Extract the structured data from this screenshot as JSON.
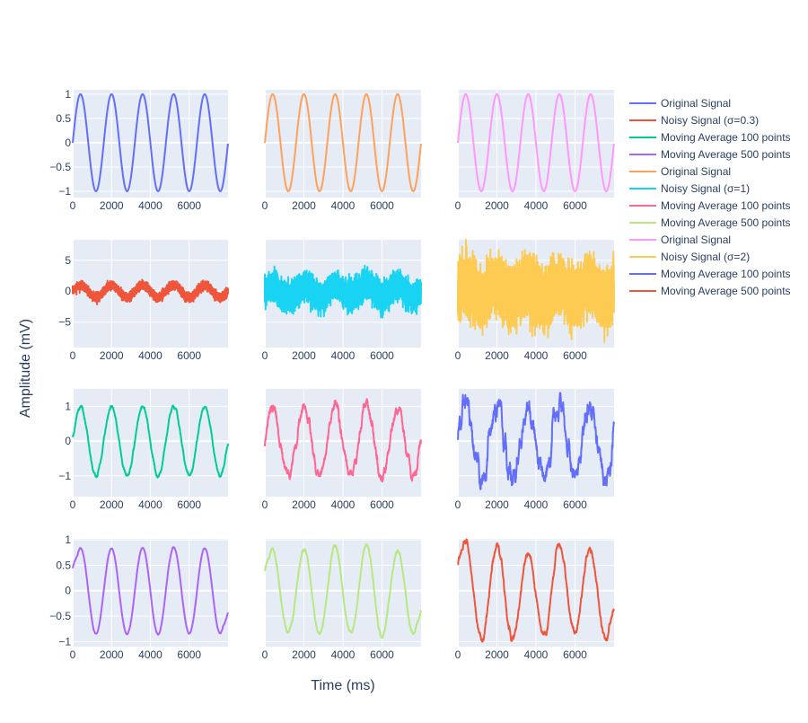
{
  "chart_data": {
    "type": "line",
    "layout": "4x3 subplot grid, shared y-axis per row",
    "xlabel": "Time (ms)",
    "ylabel": "Amplitude (mV)",
    "grid": true,
    "legend_placement": "right",
    "plot_background": "#E5ECF6",
    "x_range": [
      0,
      8000
    ],
    "x_ticks": [
      0,
      2000,
      4000,
      6000
    ],
    "signal": {
      "amplitude": 1,
      "period_ms": 1600,
      "sample_spacing_ms": 1
    },
    "rows": [
      {
        "ylim": [
          -1.13,
          1.09
        ],
        "yticks": [
          -1,
          -0.5,
          0,
          0.5,
          1
        ],
        "ytick_labels": [
          "−1",
          "−0.5",
          "0",
          "0.5",
          "1"
        ]
      },
      {
        "ylim": [
          -9.1,
          8.3
        ],
        "yticks": [
          -5,
          0,
          5
        ],
        "ytick_labels": [
          "−5",
          "0",
          "5"
        ]
      },
      {
        "ylim": [
          -1.6,
          1.5
        ],
        "yticks": [
          -1,
          0,
          1
        ],
        "ytick_labels": [
          "−1",
          "0",
          "1"
        ]
      },
      {
        "ylim": [
          -1.1,
          1.02
        ],
        "yticks": [
          -1,
          -0.5,
          0,
          0.5,
          1
        ],
        "ytick_labels": [
          "−1",
          "−0.5",
          "0",
          "0.5",
          "1"
        ]
      }
    ],
    "series": [
      {
        "name": "Original Signal",
        "row": 1,
        "col": 1,
        "color": "#636efa",
        "kind": "original",
        "sigma": 0.3
      },
      {
        "name": "Noisy Signal (σ=0.3)",
        "row": 2,
        "col": 1,
        "color": "#EF553B",
        "kind": "noisy",
        "sigma": 0.3
      },
      {
        "name": "Moving Average 100 points",
        "row": 3,
        "col": 1,
        "color": "#00cc96",
        "kind": "ma",
        "window": 100,
        "sigma": 0.3
      },
      {
        "name": "Moving Average 500 points",
        "row": 4,
        "col": 1,
        "color": "#ab63fa",
        "kind": "ma",
        "window": 500,
        "sigma": 0.3
      },
      {
        "name": "Original Signal",
        "row": 1,
        "col": 2,
        "color": "#FFA15A",
        "kind": "original",
        "sigma": 1
      },
      {
        "name": "Noisy Signal (σ=1)",
        "row": 2,
        "col": 2,
        "color": "#19d3f3",
        "kind": "noisy",
        "sigma": 1
      },
      {
        "name": "Moving Average 100 points",
        "row": 3,
        "col": 2,
        "color": "#FF6692",
        "kind": "ma",
        "window": 100,
        "sigma": 1
      },
      {
        "name": "Moving Average 500 points",
        "row": 4,
        "col": 2,
        "color": "#B6E880",
        "kind": "ma",
        "window": 500,
        "sigma": 1
      },
      {
        "name": "Original Signal",
        "row": 1,
        "col": 3,
        "color": "#FF97FF",
        "kind": "original",
        "sigma": 2
      },
      {
        "name": "Noisy Signal (σ=2)",
        "row": 2,
        "col": 3,
        "color": "#FECB52",
        "kind": "noisy",
        "sigma": 2
      },
      {
        "name": "Moving Average 100 points",
        "row": 3,
        "col": 3,
        "color": "#636efa",
        "kind": "ma",
        "window": 100,
        "sigma": 2
      },
      {
        "name": "Moving Average 500 points",
        "row": 4,
        "col": 3,
        "color": "#EF553B",
        "kind": "ma",
        "window": 500,
        "sigma": 2
      }
    ]
  }
}
